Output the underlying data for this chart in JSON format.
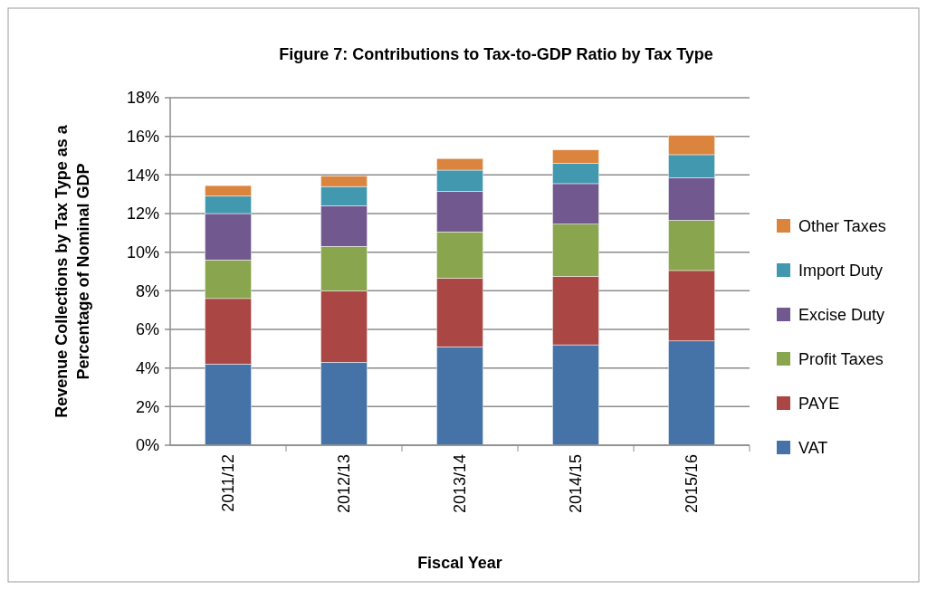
{
  "chart_data": {
    "type": "bar",
    "title": "Figure 7: Contributions to Tax-to-GDP Ratio by Tax Type",
    "xlabel": "Fiscal Year",
    "ylabel": "Revenue Collections by Tax Type as a Percentage of Nominal GDP",
    "categories": [
      "2011/12",
      "2012/13",
      "2013/14",
      "2014/15",
      "2015/16"
    ],
    "stacked": true,
    "series": [
      {
        "name": "VAT",
        "color": "#4572a7",
        "values": [
          4.2,
          4.3,
          5.1,
          5.2,
          5.4
        ]
      },
      {
        "name": "PAYE",
        "color": "#aa4643",
        "values": [
          3.4,
          3.7,
          3.55,
          3.55,
          3.65
        ]
      },
      {
        "name": "Profit Taxes",
        "color": "#89a54e",
        "values": [
          2.0,
          2.3,
          2.4,
          2.7,
          2.6
        ]
      },
      {
        "name": "Excise Duty",
        "color": "#71588f",
        "values": [
          2.4,
          2.1,
          2.1,
          2.1,
          2.2
        ]
      },
      {
        "name": "Import Duty",
        "color": "#4198af",
        "values": [
          0.9,
          1.0,
          1.1,
          1.05,
          1.2
        ]
      },
      {
        "name": "Other Taxes",
        "color": "#db843d",
        "values": [
          0.55,
          0.55,
          0.6,
          0.7,
          1.0
        ]
      }
    ],
    "ylim": [
      0,
      18
    ],
    "yticks": [
      {
        "value": 0,
        "label": "0%"
      },
      {
        "value": 2,
        "label": "2%"
      },
      {
        "value": 4,
        "label": "4%"
      },
      {
        "value": 6,
        "label": "6%"
      },
      {
        "value": 8,
        "label": "8%"
      },
      {
        "value": 10,
        "label": "10%"
      },
      {
        "value": 12,
        "label": "12%"
      },
      {
        "value": 14,
        "label": "14%"
      },
      {
        "value": 16,
        "label": "16%"
      },
      {
        "value": 18,
        "label": "18%"
      }
    ],
    "grid": "y",
    "legend": "right"
  }
}
